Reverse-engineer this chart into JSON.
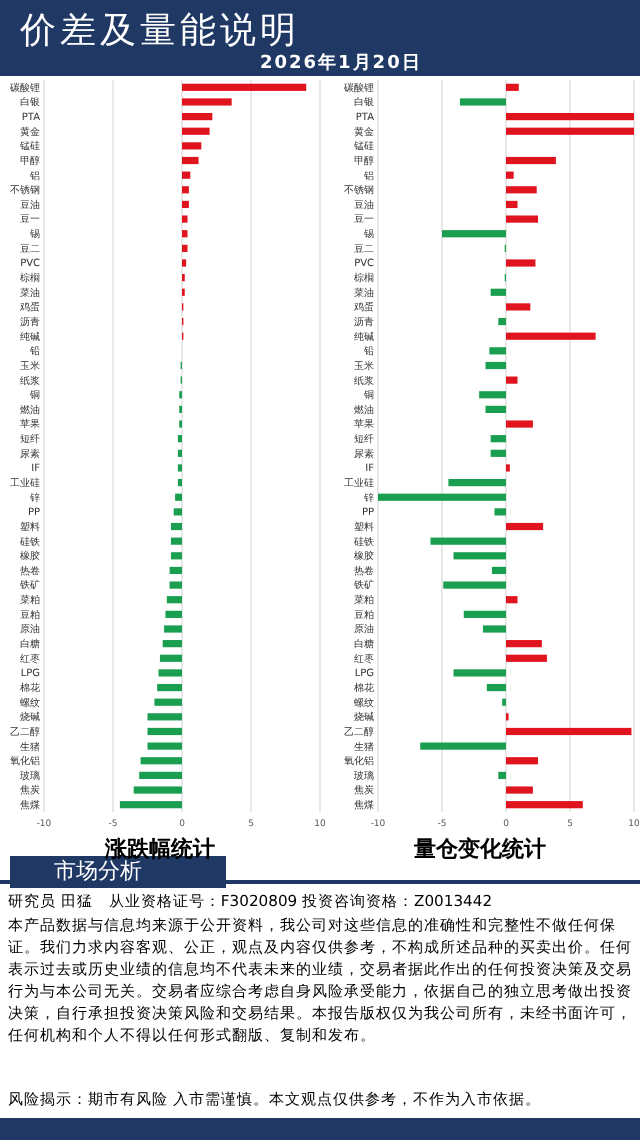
{
  "chart_data": [
    {
      "type": "bar",
      "orientation": "horizontal",
      "title": "涨跌幅统计",
      "annotations": [
        "价差及量能说明",
        "2026年1月20日",
        "市场分析",
        "研究员 田猛　从业资格证号：F3020809 投资咨询资格：Z0013442",
        "本产品数据与信息均来源于公开资料，我公司对这些信息的准确性和完整性不做任何保证。我们力求内容客观、公正，观点及内容仅供参考，不构成所述品种的买卖出价。任何表示过去或历史业绩的信息均不代表未来的业绩，交易者据此作出的任何投资决策及交易行为与本公司无关。交易者应综合考虑自身风险承受能力，依据自己的独立思考做出投资决策，自行承担投资决策风险和交易结果。本报告版权仅为我公司所有，未经书面许可，任何机构和个人不得以任何形式翻版、复制和发布。",
        "风险揭示：期市有风险 入市需谨慎。本文观点仅供参考，不作为入市依据。"
      ],
      "categories": [
        "碳酸锂",
        "白银",
        "PTA",
        "黄金",
        "锰硅",
        "甲醇",
        "铝",
        "不锈钢",
        "豆油",
        "豆一",
        "锡",
        "豆二",
        "PVC",
        "棕榈",
        "菜油",
        "鸡蛋",
        "沥青",
        "纯碱",
        "铅",
        "玉米",
        "纸浆",
        "铜",
        "燃油",
        "苹果",
        "短纤",
        "尿素",
        "IF",
        "工业硅",
        "锌",
        "PP",
        "塑料",
        "硅铁",
        "橡胶",
        "热卷",
        "铁矿",
        "菜粕",
        "豆粕",
        "原油",
        "白糖",
        "红枣",
        "LPG",
        "棉花",
        "螺纹",
        "烧碱",
        "乙二醇",
        "生猪",
        "氧化铝",
        "玻璃",
        "焦炭",
        "焦煤"
      ],
      "values": [
        9.0,
        3.6,
        2.2,
        2.0,
        1.4,
        1.2,
        0.6,
        0.5,
        0.5,
        0.4,
        0.4,
        0.4,
        0.3,
        0.2,
        0.2,
        0.1,
        0.1,
        0.1,
        0,
        -0.1,
        -0.1,
        -0.2,
        -0.2,
        -0.2,
        -0.3,
        -0.3,
        -0.3,
        -0.3,
        -0.5,
        -0.6,
        -0.8,
        -0.8,
        -0.8,
        -0.9,
        -0.9,
        -1.1,
        -1.2,
        -1.3,
        -1.4,
        -1.6,
        -1.7,
        -1.8,
        -2.0,
        -2.5,
        -2.5,
        -2.5,
        -3.0,
        -3.1,
        -3.5,
        -4.5
      ],
      "colors": [
        "#e0141e",
        "#e0141e",
        "#e0141e",
        "#e0141e",
        "#e0141e",
        "#e0141e",
        "#e0141e",
        "#e0141e",
        "#e0141e",
        "#e0141e",
        "#e0141e",
        "#e0141e",
        "#e0141e",
        "#e0141e",
        "#e0141e",
        "#e0141e",
        "#e0141e",
        "#e0141e",
        "#1a9e50",
        "#1a9e50",
        "#1a9e50",
        "#1a9e50",
        "#1a9e50",
        "#1a9e50",
        "#1a9e50",
        "#1a9e50",
        "#1a9e50",
        "#1a9e50",
        "#1a9e50",
        "#1a9e50",
        "#1a9e50",
        "#1a9e50",
        "#1a9e50",
        "#1a9e50",
        "#1a9e50",
        "#1a9e50",
        "#1a9e50",
        "#1a9e50",
        "#1a9e50",
        "#1a9e50",
        "#1a9e50",
        "#1a9e50",
        "#1a9e50",
        "#1a9e50",
        "#1a9e50",
        "#1a9e50",
        "#1a9e50",
        "#1a9e50",
        "#1a9e50",
        "#1a9e50"
      ],
      "xlim": [
        -10,
        10
      ],
      "xticks": [
        -10,
        -5,
        0,
        5,
        10
      ],
      "grid": "x"
    },
    {
      "type": "bar",
      "orientation": "horizontal",
      "title": "量仓变化统计",
      "categories": [
        "碳酸锂",
        "白银",
        "PTA",
        "黄金",
        "锰硅",
        "甲醇",
        "铝",
        "不锈钢",
        "豆油",
        "豆一",
        "锡",
        "豆二",
        "PVC",
        "棕榈",
        "菜油",
        "鸡蛋",
        "沥青",
        "纯碱",
        "铅",
        "玉米",
        "纸浆",
        "铜",
        "燃油",
        "苹果",
        "短纤",
        "尿素",
        "IF",
        "工业硅",
        "锌",
        "PP",
        "塑料",
        "硅铁",
        "橡胶",
        "热卷",
        "铁矿",
        "菜粕",
        "豆粕",
        "原油",
        "白糖",
        "红枣",
        "LPG",
        "棉花",
        "螺纹",
        "烧碱",
        "乙二醇",
        "生猪",
        "氧化铝",
        "玻璃",
        "焦炭",
        "焦煤"
      ],
      "values": [
        1.0,
        -3.6,
        10,
        10,
        0,
        3.9,
        0.6,
        2.4,
        0.9,
        2.5,
        -5.0,
        -0.1,
        2.3,
        -0.1,
        -1.2,
        1.9,
        -0.6,
        7.0,
        -1.3,
        -1.6,
        0.9,
        -2.1,
        -1.6,
        2.1,
        -1.2,
        -1.2,
        0.3,
        -4.5,
        -10,
        -0.9,
        2.9,
        -5.9,
        -4.1,
        -1.1,
        -4.9,
        0.9,
        -3.3,
        -1.8,
        2.8,
        3.2,
        -4.1,
        -1.5,
        -0.3,
        0.2,
        9.8,
        -6.7,
        2.5,
        -0.6,
        2.1,
        6.0
      ],
      "colors": [
        "#e0141e",
        "#1a9e50",
        "#e0141e",
        "#e0141e",
        "#e0141e",
        "#e0141e",
        "#e0141e",
        "#e0141e",
        "#e0141e",
        "#e0141e",
        "#1a9e50",
        "#1a9e50",
        "#e0141e",
        "#1a9e50",
        "#1a9e50",
        "#e0141e",
        "#1a9e50",
        "#e0141e",
        "#1a9e50",
        "#1a9e50",
        "#e0141e",
        "#1a9e50",
        "#1a9e50",
        "#e0141e",
        "#1a9e50",
        "#1a9e50",
        "#e0141e",
        "#1a9e50",
        "#1a9e50",
        "#1a9e50",
        "#e0141e",
        "#1a9e50",
        "#1a9e50",
        "#1a9e50",
        "#1a9e50",
        "#e0141e",
        "#1a9e50",
        "#1a9e50",
        "#e0141e",
        "#e0141e",
        "#1a9e50",
        "#1a9e50",
        "#1a9e50",
        "#e0141e",
        "#e0141e",
        "#1a9e50",
        "#e0141e",
        "#1a9e50",
        "#e0141e",
        "#e0141e"
      ],
      "xlim": [
        -10,
        10
      ],
      "xticks": [
        -10,
        -5,
        0,
        5,
        10
      ],
      "grid": "x"
    }
  ]
}
